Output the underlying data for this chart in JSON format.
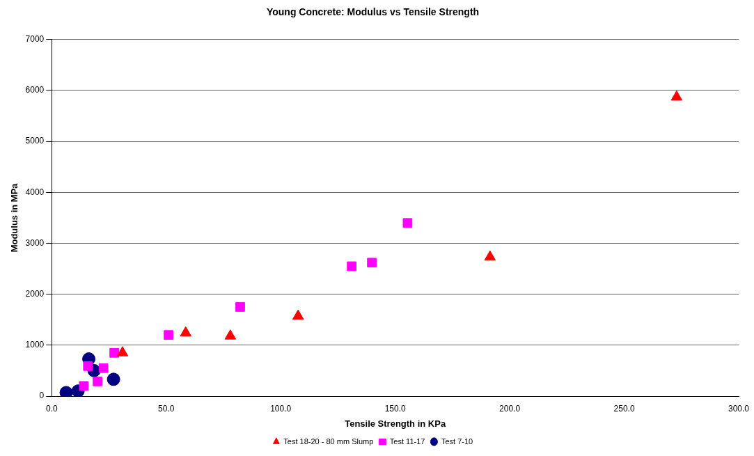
{
  "chart_data": {
    "type": "scatter",
    "title": "Young Concrete: Modulus vs Tensile Strength",
    "xlabel": "Tensile Strength in KPa",
    "ylabel": "Modulus in MPa",
    "xlim": [
      0,
      300
    ],
    "xticks": [
      {
        "value": 0,
        "label": "0.0"
      },
      {
        "value": 50,
        "label": "50.0"
      },
      {
        "value": 100,
        "label": "100.0"
      },
      {
        "value": 150,
        "label": "150.0"
      },
      {
        "value": 200,
        "label": "200.0"
      },
      {
        "value": 250,
        "label": "250.0"
      },
      {
        "value": 300,
        "label": "300.0"
      }
    ],
    "ylim": [
      0,
      7000
    ],
    "yticks": [
      0,
      1000,
      2000,
      3000,
      4000,
      5000,
      6000,
      7000
    ],
    "grid": "y",
    "legend": "bottom",
    "series": [
      {
        "name": "Test 7-10",
        "color": "#000080",
        "marker": "circle",
        "x": [
          6.3,
          11.5,
          16.2,
          18.5,
          27
        ],
        "values": [
          70,
          100,
          730,
          500,
          330
        ]
      },
      {
        "name": "Test 11-17",
        "color": "#ff00ff",
        "marker": "square",
        "x": [
          14,
          15.8,
          20,
          22.6,
          27.3,
          51,
          82.3,
          131,
          139.8,
          155.4
        ],
        "values": [
          200,
          590,
          290,
          550,
          850,
          1200,
          1750,
          2550,
          2620,
          3400
        ]
      },
      {
        "name": "Test 18-20 - 80 mm Slump",
        "color": "#ff0000",
        "marker": "triangle",
        "x": [
          30.9,
          58.5,
          78,
          107.6,
          191.4,
          272.9
        ],
        "values": [
          850,
          1240,
          1180,
          1570,
          2730,
          5870
        ]
      }
    ]
  }
}
